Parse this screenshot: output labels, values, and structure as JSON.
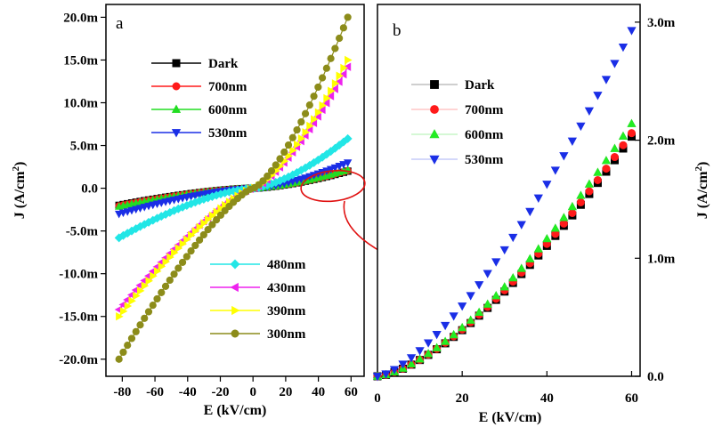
{
  "chart_data": [
    {
      "type": "line",
      "panel_label": "a",
      "xlabel": "E (kV/cm)",
      "ylabel_text": "J (A/cm",
      "ylabel_sup": "2",
      "ylabel_tail": ")",
      "xlim": [
        -90,
        68
      ],
      "ylim": [
        -22,
        21.5
      ],
      "xticks": [
        -80,
        -60,
        -40,
        -20,
        0,
        20,
        40,
        60
      ],
      "yticks": [
        {
          "v": 20,
          "label": "20.0m"
        },
        {
          "v": 15,
          "label": "15.0m"
        },
        {
          "v": 10,
          "label": "10.0m"
        },
        {
          "v": 5,
          "label": "5.0m"
        },
        {
          "v": 0,
          "label": "0.0"
        },
        {
          "v": -5,
          "label": "-5.0m"
        },
        {
          "v": -10,
          "label": "-10.0m"
        },
        {
          "v": -15,
          "label": "-15.0m"
        },
        {
          "v": -20,
          "label": "-20.0m"
        }
      ],
      "x_range": [
        -82,
        58
      ],
      "series": [
        {
          "name": "Dark",
          "color": "#000000",
          "marker": "square",
          "pos": [
            2.0,
            1.5
          ],
          "neg": [
            -2.0,
            1.5
          ]
        },
        {
          "name": "700nm",
          "color": "#ff1a1a",
          "marker": "circle",
          "pos": [
            2.05,
            1.5
          ],
          "neg": [
            -2.05,
            1.5
          ]
        },
        {
          "name": "600nm",
          "color": "#22dd22",
          "marker": "triangle-up",
          "pos": [
            2.15,
            1.5
          ],
          "neg": [
            -2.15,
            1.5
          ]
        },
        {
          "name": "530nm",
          "color": "#1a2ee6",
          "marker": "triangle-down",
          "pos": [
            3.0,
            1.5
          ],
          "neg": [
            -3.0,
            1.5
          ]
        },
        {
          "name": "480nm",
          "color": "#22e6e6",
          "marker": "diamond",
          "pos": [
            5.8,
            1.5
          ],
          "neg": [
            -5.8,
            1.5
          ]
        },
        {
          "name": "430nm",
          "color": "#ee22ee",
          "marker": "triangle-left",
          "pos": [
            14.2,
            1.4
          ],
          "neg": [
            -14.2,
            1.3
          ]
        },
        {
          "name": "390nm",
          "color": "#ffff00",
          "marker": "triangle-right",
          "pos": [
            15.0,
            1.4
          ],
          "neg": [
            -15.0,
            1.3
          ]
        },
        {
          "name": "300nm",
          "color": "#8c8c1a",
          "marker": "circle",
          "pos": [
            20.0,
            1.4
          ],
          "neg": [
            -20.0,
            1.3
          ]
        }
      ],
      "legend_top": [
        "Dark",
        "700nm",
        "600nm",
        "530nm"
      ],
      "legend_bottom": [
        "480nm",
        "430nm",
        "390nm",
        "300nm"
      ]
    },
    {
      "type": "scatter",
      "panel_label": "b",
      "xlabel": "E (kV/cm)",
      "ylabel_text": "J (A/cm",
      "ylabel_sup": "2",
      "ylabel_tail": ")",
      "xlim": [
        0,
        62
      ],
      "ylim": [
        0,
        3.15
      ],
      "xticks": [
        0,
        20,
        40,
        60
      ],
      "yticks": [
        {
          "v": 0,
          "label": "0.0"
        },
        {
          "v": 1,
          "label": "1.0m"
        },
        {
          "v": 2,
          "label": "2.0m"
        },
        {
          "v": 3,
          "label": "3.0m"
        }
      ],
      "x_range": [
        0,
        60
      ],
      "series": [
        {
          "name": "Dark",
          "color": "#000000",
          "marker": "square",
          "fill": "#000000",
          "end": [
            2.03,
            1.5
          ]
        },
        {
          "name": "700nm",
          "color": "#ff1a1a",
          "marker": "circle",
          "fill": "#ff1a1a",
          "end": [
            2.06,
            1.5
          ]
        },
        {
          "name": "600nm",
          "color": "#22dd22",
          "marker": "triangle-up",
          "fill": "#22ee22",
          "end": [
            2.14,
            1.5
          ]
        },
        {
          "name": "530nm",
          "color": "#1a2ee6",
          "marker": "triangle-down",
          "fill": "#1a2ee6",
          "end": [
            2.93,
            1.45
          ]
        }
      ]
    }
  ]
}
